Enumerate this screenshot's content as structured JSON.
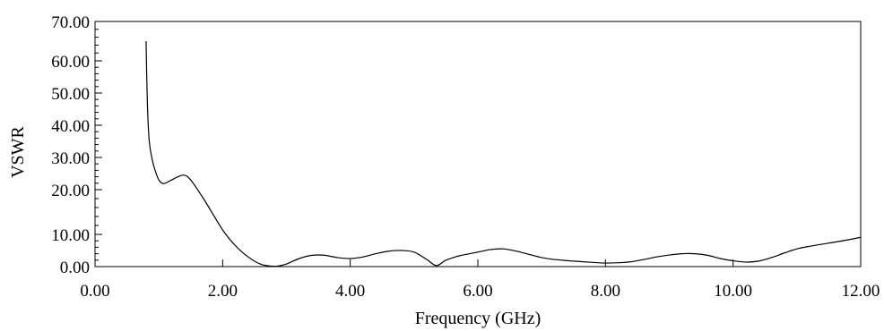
{
  "chart_data": {
    "type": "line",
    "title": "",
    "xlabel": "Frequency (GHz)",
    "ylabel": "VSWR",
    "xlim": [
      0,
      12
    ],
    "ylim": [
      0,
      70
    ],
    "x_ticks": [
      "0.00",
      "2.00",
      "4.00",
      "6.00",
      "8.00",
      "10.00",
      "12.00"
    ],
    "y_ticks": [
      "0.00",
      "10.00",
      "20.00",
      "30.00",
      "40.00",
      "50.00",
      "60.00",
      "70.00"
    ],
    "grid": false,
    "legend": "none",
    "line_color": "#000000",
    "series": [
      {
        "x": [
          0.8,
          0.82,
          0.85,
          0.9,
          0.95,
          1.0,
          1.05,
          1.1,
          1.15,
          1.2,
          1.3,
          1.4,
          1.5,
          1.7,
          2.0,
          2.2,
          2.4,
          2.6,
          2.8,
          2.9,
          3.0,
          3.2,
          3.4,
          3.6,
          3.8,
          4.0,
          4.2,
          4.4,
          4.6,
          4.8,
          5.0,
          5.2,
          5.35,
          5.5,
          5.7,
          6.0,
          6.2,
          6.4,
          6.6,
          6.8,
          7.0,
          7.2,
          7.5,
          7.8,
          8.0,
          8.2,
          8.4,
          8.6,
          8.8,
          9.0,
          9.2,
          9.4,
          9.6,
          9.8,
          10.0,
          10.2,
          10.4,
          10.6,
          10.8,
          11.0,
          11.2,
          11.5,
          11.8,
          12.0
        ],
        "y": [
          65,
          47,
          35,
          29,
          25.5,
          23,
          22,
          22,
          22.5,
          23,
          24,
          24.5,
          23,
          18,
          11,
          6.5,
          3,
          0.7,
          0.1,
          0.3,
          0.8,
          2.5,
          3.5,
          3.5,
          2.8,
          2.5,
          3,
          4,
          4.8,
          5,
          4.5,
          2.2,
          0.3,
          2,
          3.3,
          4.5,
          5.3,
          5.5,
          4.8,
          3.8,
          2.8,
          2.2,
          1.7,
          1.3,
          1.1,
          1.2,
          1.5,
          2.2,
          3,
          3.6,
          4,
          4,
          3.5,
          2.5,
          1.8,
          1.4,
          1.7,
          2.8,
          4.2,
          5.5,
          6.3,
          7.3,
          8.3,
          9.1
        ]
      }
    ]
  }
}
